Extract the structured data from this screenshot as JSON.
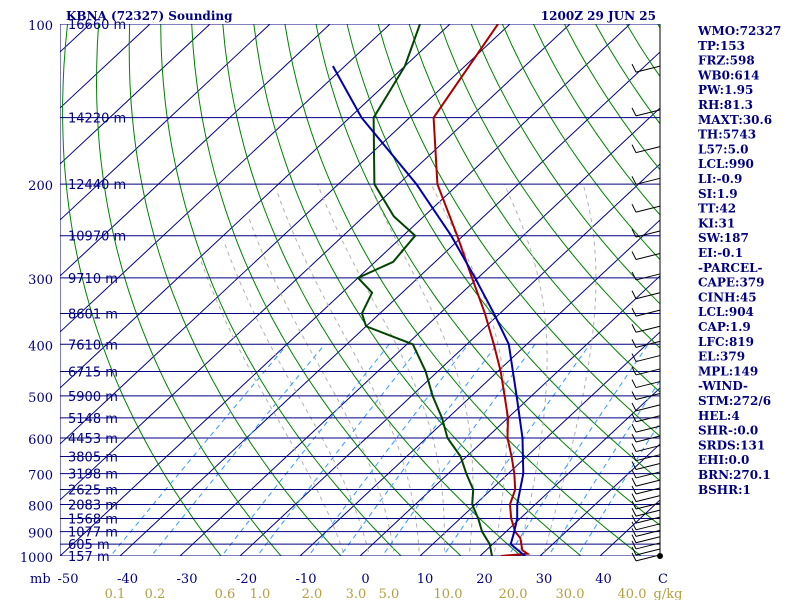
{
  "header": {
    "title": "KBNA (72327) Sounding",
    "time": "1200Z 29 JUN 25"
  },
  "colors": {
    "background": "#ffffff",
    "isobar": "#000080",
    "isotherm": "#000080",
    "dry_adiabat": "#008000",
    "moist_adiabat": "#b0b0b0",
    "mixing_ratio": "#3399ff",
    "temperature": "#aa0000",
    "dewpoint": "#004400",
    "parcel": "#0000aa",
    "text": "#000080",
    "bottom_labels": "#b3a040"
  },
  "chart_data": {
    "type": "line",
    "title": "KBNA (72327) Sounding",
    "xlabel": "",
    "ylabel": "",
    "pressure_unit_label": "mb",
    "ylim": [
      1000,
      100
    ],
    "y_scale": "log",
    "xlim": [
      -50,
      50
    ],
    "pressure_ticks": [
      100,
      200,
      300,
      400,
      500,
      600,
      700,
      800,
      900,
      1000
    ],
    "temperature_ticks": [
      "-50",
      "-40",
      "-30",
      "-20",
      "-10",
      "0",
      "10",
      "20",
      "30",
      "40",
      "C"
    ],
    "mixing_ratio_unit_label": "g/kg",
    "mixing_ratio_ticks": [
      "0.1",
      "0.2",
      "0.6",
      "1.0",
      "2.0",
      "3.0",
      "5.0",
      "10.0",
      "20.0",
      "30.0",
      "40.0"
    ],
    "height_labels": [
      {
        "p": 100,
        "label": "16660 m"
      },
      {
        "p": 150,
        "label": "14220 m"
      },
      {
        "p": 200,
        "label": "12440 m"
      },
      {
        "p": 250,
        "label": "10970 m"
      },
      {
        "p": 300,
        "label": "9710 m"
      },
      {
        "p": 350,
        "label": "8601 m"
      },
      {
        "p": 400,
        "label": "7610 m"
      },
      {
        "p": 450,
        "label": "6715 m"
      },
      {
        "p": 500,
        "label": "5900 m"
      },
      {
        "p": 550,
        "label": "5148 m"
      },
      {
        "p": 600,
        "label": "4453 m"
      },
      {
        "p": 650,
        "label": "3805 m"
      },
      {
        "p": 700,
        "label": "3198 m"
      },
      {
        "p": 750,
        "label": "2625 m"
      },
      {
        "p": 800,
        "label": "2083 m"
      },
      {
        "p": 850,
        "label": "1568 m"
      },
      {
        "p": 900,
        "label": "1077 m"
      },
      {
        "p": 950,
        "label": "605 m"
      },
      {
        "p": 1000,
        "label": "157 m"
      }
    ],
    "series": [
      {
        "key": "temperature",
        "points": [
          {
            "p": 1000,
            "t": 23.5
          },
          {
            "p": 990,
            "t": 27.5
          },
          {
            "p": 975,
            "t": 26.0
          },
          {
            "p": 925,
            "t": 23.5
          },
          {
            "p": 900,
            "t": 21.5
          },
          {
            "p": 850,
            "t": 18.5
          },
          {
            "p": 800,
            "t": 15.8
          },
          {
            "p": 750,
            "t": 14.0
          },
          {
            "p": 700,
            "t": 11.0
          },
          {
            "p": 650,
            "t": 7.5
          },
          {
            "p": 600,
            "t": 3.5
          },
          {
            "p": 550,
            "t": 0.0
          },
          {
            "p": 500,
            "t": -4.5
          },
          {
            "p": 450,
            "t": -9.5
          },
          {
            "p": 400,
            "t": -15.5
          },
          {
            "p": 350,
            "t": -22.5
          },
          {
            "p": 300,
            "t": -31.0
          },
          {
            "p": 250,
            "t": -41.0
          },
          {
            "p": 200,
            "t": -53.5
          },
          {
            "p": 150,
            "t": -66.0
          },
          {
            "p": 100,
            "t": -72.0
          }
        ]
      },
      {
        "key": "dewpoint",
        "points": [
          {
            "p": 1000,
            "t": 22.0
          },
          {
            "p": 950,
            "t": 19.5
          },
          {
            "p": 900,
            "t": 16.0
          },
          {
            "p": 850,
            "t": 13.0
          },
          {
            "p": 800,
            "t": 9.5
          },
          {
            "p": 750,
            "t": 7.0
          },
          {
            "p": 700,
            "t": 3.0
          },
          {
            "p": 650,
            "t": -1.0
          },
          {
            "p": 600,
            "t": -6.5
          },
          {
            "p": 550,
            "t": -11.0
          },
          {
            "p": 500,
            "t": -16.5
          },
          {
            "p": 450,
            "t": -22.0
          },
          {
            "p": 400,
            "t": -29.0
          },
          {
            "p": 370,
            "t": -40.0
          },
          {
            "p": 350,
            "t": -43.0
          },
          {
            "p": 320,
            "t": -45.0
          },
          {
            "p": 300,
            "t": -50.0
          },
          {
            "p": 280,
            "t": -47.0
          },
          {
            "p": 250,
            "t": -48.0
          },
          {
            "p": 230,
            "t": -55.0
          },
          {
            "p": 200,
            "t": -64.0
          },
          {
            "p": 150,
            "t": -76.0
          },
          {
            "p": 120,
            "t": -80.0
          },
          {
            "p": 100,
            "t": -85.0
          }
        ]
      },
      {
        "key": "parcel",
        "points": [
          {
            "p": 1000,
            "t": 27.5
          },
          {
            "p": 950,
            "t": 23.0
          },
          {
            "p": 904,
            "t": 21.5
          },
          {
            "p": 850,
            "t": 19.5
          },
          {
            "p": 800,
            "t": 17.0
          },
          {
            "p": 700,
            "t": 12.5
          },
          {
            "p": 600,
            "t": 6.0
          },
          {
            "p": 500,
            "t": -2.5
          },
          {
            "p": 400,
            "t": -13.0
          },
          {
            "p": 350,
            "t": -21.0
          },
          {
            "p": 300,
            "t": -30.5
          },
          {
            "p": 250,
            "t": -42.0
          },
          {
            "p": 200,
            "t": -57.0
          },
          {
            "p": 150,
            "t": -78.0
          },
          {
            "p": 120,
            "t": -92.0
          }
        ]
      }
    ]
  },
  "indices": [
    "WMO:72327",
    "TP:153",
    "FRZ:598",
    "WB0:614",
    "PW:1.95",
    "RH:81.3",
    "MAXT:30.6",
    "TH:5743",
    "L57:5.0",
    "LCL:990",
    "LI:-0.9",
    "SI:1.9",
    "TT:42",
    "KI:31",
    "SW:187",
    "EI:-0.1",
    "-PARCEL-",
    "CAPE:379",
    "CINH:45",
    "LCL:904",
    "CAP:1.9",
    "LFC:819",
    "EL:379",
    "MPL:149",
    "-WIND-",
    "STM:272/6",
    "HEL:4",
    "SHR-:0.0",
    "SRDS:131",
    "EHI:0.0",
    "BRN:270.1",
    "BSHR:1"
  ]
}
